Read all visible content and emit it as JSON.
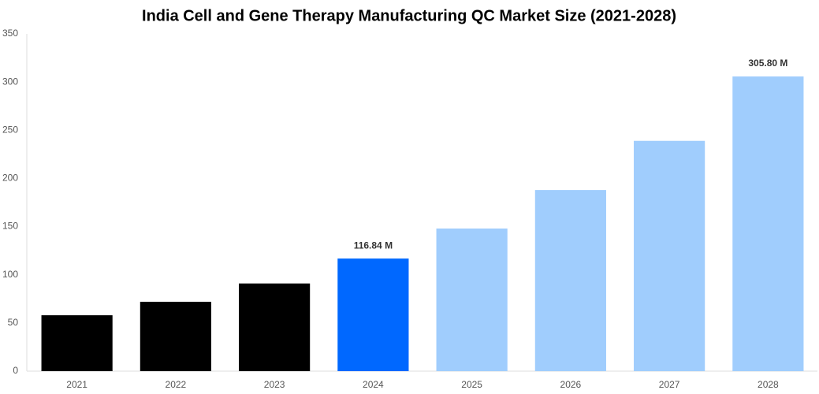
{
  "chart_data": {
    "type": "bar",
    "title": "India Cell and Gene Therapy Manufacturing QC Market Size (2021-2028)",
    "categories": [
      "2021",
      "2022",
      "2023",
      "2024",
      "2025",
      "2026",
      "2027",
      "2028"
    ],
    "values": [
      58,
      72,
      91,
      116.84,
      148,
      188,
      239,
      305.8
    ],
    "value_labels": [
      null,
      null,
      null,
      "116.84 M",
      null,
      null,
      null,
      "305.80 M"
    ],
    "colors": [
      "#000000",
      "#000000",
      "#000000",
      "#0068ff",
      "#a0cdfd",
      "#a0cdfd",
      "#a0cdfd",
      "#a0cdfd"
    ],
    "ylim": [
      0,
      350
    ],
    "yticks": [
      0,
      50,
      100,
      150,
      200,
      250,
      300,
      350
    ],
    "grid": false
  }
}
